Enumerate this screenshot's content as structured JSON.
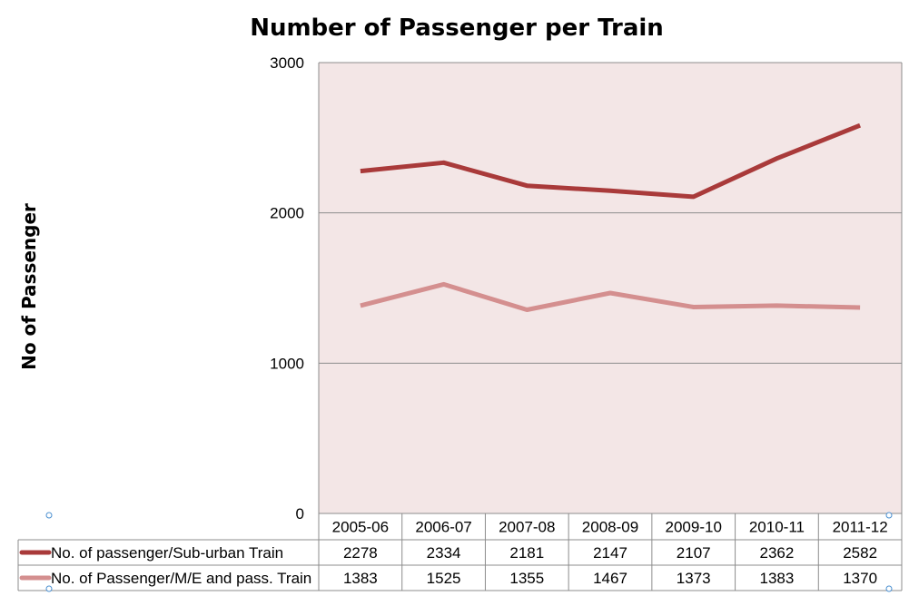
{
  "chart_data": {
    "type": "line",
    "title": "Number of Passenger per  Train",
    "ylabel": "No of Passenger",
    "xlabel": "",
    "ylim": [
      0,
      3000
    ],
    "yticks": [
      0,
      1000,
      2000,
      3000
    ],
    "categories": [
      "2005-06",
      "2006-07",
      "2007-08",
      "2008-09",
      "2009-10",
      "2010-11",
      "2011-12"
    ],
    "series": [
      {
        "name": "No. of passenger/Sub-urban  Train",
        "color": "#a93a3a",
        "values": [
          2278,
          2334,
          2181,
          2147,
          2107,
          2362,
          2582
        ]
      },
      {
        "name": "No. of Passenger/M/E  and pass. Train",
        "color": "#d48f8f",
        "values": [
          1383,
          1525,
          1355,
          1467,
          1373,
          1383,
          1370
        ]
      }
    ],
    "grid": true,
    "legend": "data-table",
    "plot_background": "#f3e6e6"
  }
}
